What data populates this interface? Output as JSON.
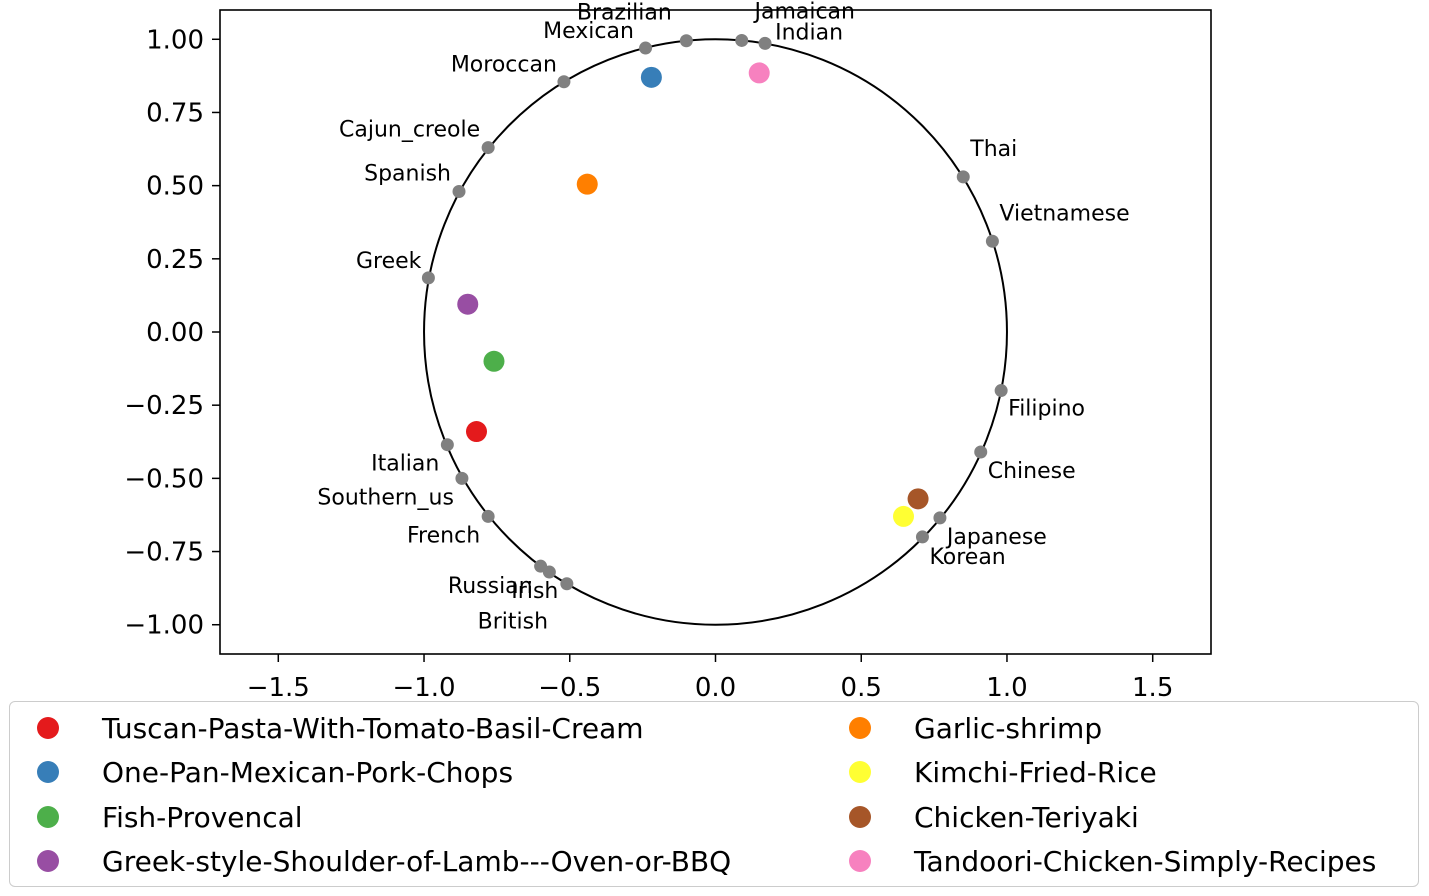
{
  "chart_data": {
    "type": "scatter",
    "xlim": [
      -1.7,
      1.7
    ],
    "ylim": [
      -1.1,
      1.1
    ],
    "x_ticks": [
      -1.5,
      -1.0,
      -0.5,
      0.0,
      0.5,
      1.0,
      1.5
    ],
    "y_ticks": [
      1.0,
      0.75,
      0.5,
      0.25,
      0.0,
      -0.25,
      -0.5,
      -0.75,
      -1.0
    ],
    "x_tick_labels": [
      "−1.5",
      "−1.0",
      "−0.5",
      "0.0",
      "0.5",
      "1.0",
      "1.5"
    ],
    "y_tick_labels": [
      "1.00",
      "0.75",
      "0.50",
      "0.25",
      "0.00",
      "−0.25",
      "−0.50",
      "−0.75",
      "−1.00"
    ],
    "unit_circle": {
      "center": [
        0,
        0
      ],
      "radius": 1.0,
      "color": "#000000"
    },
    "grid": false,
    "legend_position": "bottom",
    "cuisine_color": "#808080",
    "cuisines": [
      {
        "name": "Brazilian",
        "x": -0.1,
        "y": 0.995
      },
      {
        "name": "Mexican",
        "x": -0.24,
        "y": 0.97
      },
      {
        "name": "Jamaican",
        "x": 0.09,
        "y": 0.996
      },
      {
        "name": "Indian",
        "x": 0.17,
        "y": 0.986
      },
      {
        "name": "Moroccan",
        "x": -0.52,
        "y": 0.855
      },
      {
        "name": "Cajun_creole",
        "x": -0.78,
        "y": 0.63
      },
      {
        "name": "Spanish",
        "x": -0.88,
        "y": 0.48
      },
      {
        "name": "Greek",
        "x": -0.985,
        "y": 0.185
      },
      {
        "name": "Thai",
        "x": 0.85,
        "y": 0.53
      },
      {
        "name": "Vietnamese",
        "x": 0.95,
        "y": 0.31
      },
      {
        "name": "Filipino",
        "x": 0.98,
        "y": -0.2
      },
      {
        "name": "Chinese",
        "x": 0.91,
        "y": -0.41
      },
      {
        "name": "Japanese",
        "x": 0.77,
        "y": -0.635
      },
      {
        "name": "Korean",
        "x": 0.71,
        "y": -0.7
      },
      {
        "name": "Italian",
        "x": -0.92,
        "y": -0.385
      },
      {
        "name": "Southern_us",
        "x": -0.87,
        "y": -0.5
      },
      {
        "name": "French",
        "x": -0.78,
        "y": -0.63
      },
      {
        "name": "Russian",
        "x": -0.6,
        "y": -0.8
      },
      {
        "name": "Irish",
        "x": -0.57,
        "y": -0.82
      },
      {
        "name": "British",
        "x": -0.51,
        "y": -0.86
      }
    ],
    "series": [
      {
        "name": "Tuscan-Pasta-With-Tomato-Basil-Cream",
        "x": -0.82,
        "y": -0.34,
        "color": "#e41a1c"
      },
      {
        "name": "One-Pan-Mexican-Pork-Chops",
        "x": -0.22,
        "y": 0.87,
        "color": "#377eb8"
      },
      {
        "name": "Fish-Provencal",
        "x": -0.76,
        "y": -0.1,
        "color": "#4daf4a"
      },
      {
        "name": "Greek-style-Shoulder-of-Lamb---Oven-or-BBQ",
        "x": -0.85,
        "y": 0.095,
        "color": "#984ea3"
      },
      {
        "name": "Garlic-shrimp",
        "x": -0.44,
        "y": 0.505,
        "color": "#ff7f00"
      },
      {
        "name": "Kimchi-Fried-Rice",
        "x": 0.645,
        "y": -0.63,
        "color": "#ffff33"
      },
      {
        "name": "Chicken-Teriyaki",
        "x": 0.695,
        "y": -0.57,
        "color": "#a65628"
      },
      {
        "name": "Tandoori-Chicken-Simply-Recipes",
        "x": 0.15,
        "y": 0.885,
        "color": "#f781bf"
      }
    ]
  }
}
